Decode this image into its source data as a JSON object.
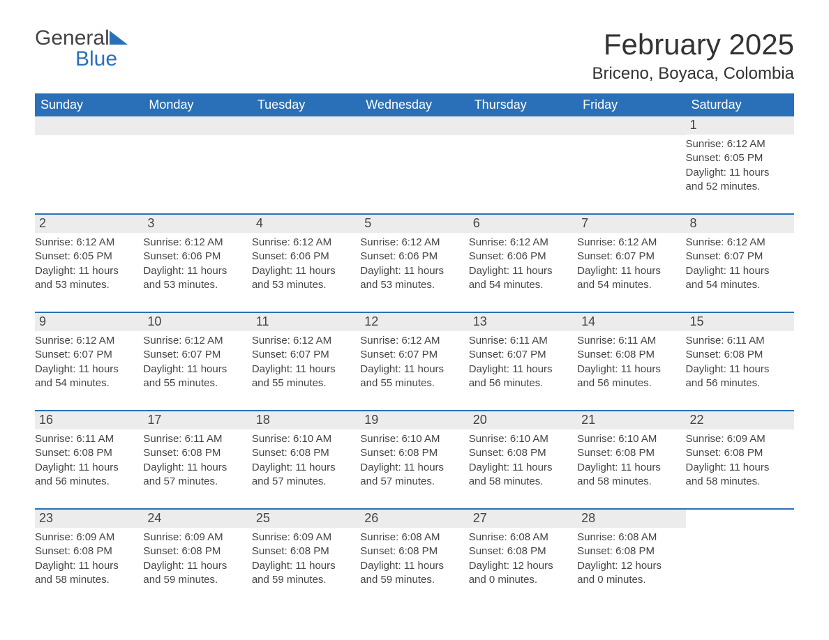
{
  "logo": {
    "text_general": "General",
    "text_blue": "Blue",
    "color_general": "#444444",
    "color_blue": "#2a70b8",
    "triangle_color": "#2a70b8"
  },
  "header": {
    "month_title": "February 2025",
    "location": "Briceno, Boyaca, Colombia",
    "title_fontsize": 42,
    "location_fontsize": 24
  },
  "styling": {
    "header_bg": "#2a70b8",
    "header_text_color": "#ffffff",
    "daybar_bg": "#ececec",
    "week_border_color": "#2a70b8",
    "body_text_color": "#444444",
    "page_bg": "#ffffff",
    "weekday_fontsize": 18,
    "daynum_fontsize": 18,
    "body_fontsize": 15
  },
  "weekdays": [
    "Sunday",
    "Monday",
    "Tuesday",
    "Wednesday",
    "Thursday",
    "Friday",
    "Saturday"
  ],
  "weeks": [
    [
      {
        "blank": true
      },
      {
        "blank": true
      },
      {
        "blank": true
      },
      {
        "blank": true
      },
      {
        "blank": true
      },
      {
        "blank": true
      },
      {
        "day": "1",
        "sunrise": "Sunrise: 6:12 AM",
        "sunset": "Sunset: 6:05 PM",
        "daylight1": "Daylight: 11 hours",
        "daylight2": "and 52 minutes."
      }
    ],
    [
      {
        "day": "2",
        "sunrise": "Sunrise: 6:12 AM",
        "sunset": "Sunset: 6:05 PM",
        "daylight1": "Daylight: 11 hours",
        "daylight2": "and 53 minutes."
      },
      {
        "day": "3",
        "sunrise": "Sunrise: 6:12 AM",
        "sunset": "Sunset: 6:06 PM",
        "daylight1": "Daylight: 11 hours",
        "daylight2": "and 53 minutes."
      },
      {
        "day": "4",
        "sunrise": "Sunrise: 6:12 AM",
        "sunset": "Sunset: 6:06 PM",
        "daylight1": "Daylight: 11 hours",
        "daylight2": "and 53 minutes."
      },
      {
        "day": "5",
        "sunrise": "Sunrise: 6:12 AM",
        "sunset": "Sunset: 6:06 PM",
        "daylight1": "Daylight: 11 hours",
        "daylight2": "and 53 minutes."
      },
      {
        "day": "6",
        "sunrise": "Sunrise: 6:12 AM",
        "sunset": "Sunset: 6:06 PM",
        "daylight1": "Daylight: 11 hours",
        "daylight2": "and 54 minutes."
      },
      {
        "day": "7",
        "sunrise": "Sunrise: 6:12 AM",
        "sunset": "Sunset: 6:07 PM",
        "daylight1": "Daylight: 11 hours",
        "daylight2": "and 54 minutes."
      },
      {
        "day": "8",
        "sunrise": "Sunrise: 6:12 AM",
        "sunset": "Sunset: 6:07 PM",
        "daylight1": "Daylight: 11 hours",
        "daylight2": "and 54 minutes."
      }
    ],
    [
      {
        "day": "9",
        "sunrise": "Sunrise: 6:12 AM",
        "sunset": "Sunset: 6:07 PM",
        "daylight1": "Daylight: 11 hours",
        "daylight2": "and 54 minutes."
      },
      {
        "day": "10",
        "sunrise": "Sunrise: 6:12 AM",
        "sunset": "Sunset: 6:07 PM",
        "daylight1": "Daylight: 11 hours",
        "daylight2": "and 55 minutes."
      },
      {
        "day": "11",
        "sunrise": "Sunrise: 6:12 AM",
        "sunset": "Sunset: 6:07 PM",
        "daylight1": "Daylight: 11 hours",
        "daylight2": "and 55 minutes."
      },
      {
        "day": "12",
        "sunrise": "Sunrise: 6:12 AM",
        "sunset": "Sunset: 6:07 PM",
        "daylight1": "Daylight: 11 hours",
        "daylight2": "and 55 minutes."
      },
      {
        "day": "13",
        "sunrise": "Sunrise: 6:11 AM",
        "sunset": "Sunset: 6:07 PM",
        "daylight1": "Daylight: 11 hours",
        "daylight2": "and 56 minutes."
      },
      {
        "day": "14",
        "sunrise": "Sunrise: 6:11 AM",
        "sunset": "Sunset: 6:08 PM",
        "daylight1": "Daylight: 11 hours",
        "daylight2": "and 56 minutes."
      },
      {
        "day": "15",
        "sunrise": "Sunrise: 6:11 AM",
        "sunset": "Sunset: 6:08 PM",
        "daylight1": "Daylight: 11 hours",
        "daylight2": "and 56 minutes."
      }
    ],
    [
      {
        "day": "16",
        "sunrise": "Sunrise: 6:11 AM",
        "sunset": "Sunset: 6:08 PM",
        "daylight1": "Daylight: 11 hours",
        "daylight2": "and 56 minutes."
      },
      {
        "day": "17",
        "sunrise": "Sunrise: 6:11 AM",
        "sunset": "Sunset: 6:08 PM",
        "daylight1": "Daylight: 11 hours",
        "daylight2": "and 57 minutes."
      },
      {
        "day": "18",
        "sunrise": "Sunrise: 6:10 AM",
        "sunset": "Sunset: 6:08 PM",
        "daylight1": "Daylight: 11 hours",
        "daylight2": "and 57 minutes."
      },
      {
        "day": "19",
        "sunrise": "Sunrise: 6:10 AM",
        "sunset": "Sunset: 6:08 PM",
        "daylight1": "Daylight: 11 hours",
        "daylight2": "and 57 minutes."
      },
      {
        "day": "20",
        "sunrise": "Sunrise: 6:10 AM",
        "sunset": "Sunset: 6:08 PM",
        "daylight1": "Daylight: 11 hours",
        "daylight2": "and 58 minutes."
      },
      {
        "day": "21",
        "sunrise": "Sunrise: 6:10 AM",
        "sunset": "Sunset: 6:08 PM",
        "daylight1": "Daylight: 11 hours",
        "daylight2": "and 58 minutes."
      },
      {
        "day": "22",
        "sunrise": "Sunrise: 6:09 AM",
        "sunset": "Sunset: 6:08 PM",
        "daylight1": "Daylight: 11 hours",
        "daylight2": "and 58 minutes."
      }
    ],
    [
      {
        "day": "23",
        "sunrise": "Sunrise: 6:09 AM",
        "sunset": "Sunset: 6:08 PM",
        "daylight1": "Daylight: 11 hours",
        "daylight2": "and 58 minutes."
      },
      {
        "day": "24",
        "sunrise": "Sunrise: 6:09 AM",
        "sunset": "Sunset: 6:08 PM",
        "daylight1": "Daylight: 11 hours",
        "daylight2": "and 59 minutes."
      },
      {
        "day": "25",
        "sunrise": "Sunrise: 6:09 AM",
        "sunset": "Sunset: 6:08 PM",
        "daylight1": "Daylight: 11 hours",
        "daylight2": "and 59 minutes."
      },
      {
        "day": "26",
        "sunrise": "Sunrise: 6:08 AM",
        "sunset": "Sunset: 6:08 PM",
        "daylight1": "Daylight: 11 hours",
        "daylight2": "and 59 minutes."
      },
      {
        "day": "27",
        "sunrise": "Sunrise: 6:08 AM",
        "sunset": "Sunset: 6:08 PM",
        "daylight1": "Daylight: 12 hours",
        "daylight2": "and 0 minutes."
      },
      {
        "day": "28",
        "sunrise": "Sunrise: 6:08 AM",
        "sunset": "Sunset: 6:08 PM",
        "daylight1": "Daylight: 12 hours",
        "daylight2": "and 0 minutes."
      },
      {
        "blank_trailing": true
      }
    ]
  ]
}
